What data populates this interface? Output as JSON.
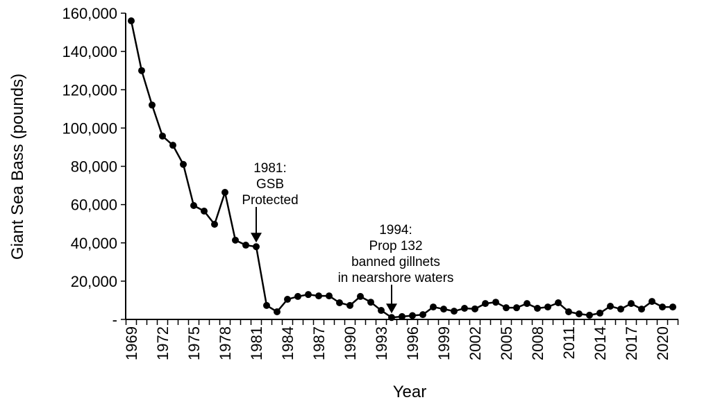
{
  "chart_data": {
    "type": "line",
    "title": "",
    "xlabel": "Year",
    "ylabel": "Giant Sea Bass (pounds)",
    "ylim": [
      0,
      160000
    ],
    "yticks": [
      0,
      20000,
      40000,
      60000,
      80000,
      100000,
      120000,
      140000,
      160000
    ],
    "ytick_labels": [
      "-",
      "20,000",
      "40,000",
      "60,000",
      "80,000",
      "100,000",
      "120,000",
      "140,000",
      "160,000"
    ],
    "xlim": [
      1969,
      2021
    ],
    "xtick_labels": [
      "1969",
      "1972",
      "1975",
      "1978",
      "1981",
      "1984",
      "1987",
      "1990",
      "1993",
      "1996",
      "1999",
      "2002",
      "2005",
      "2008",
      "2011",
      "2014",
      "2017",
      "2020"
    ],
    "grid": false,
    "marker": "circle",
    "color": "#000000",
    "x": [
      1969,
      1970,
      1971,
      1972,
      1973,
      1974,
      1975,
      1976,
      1977,
      1978,
      1979,
      1980,
      1981,
      1982,
      1983,
      1984,
      1985,
      1986,
      1987,
      1988,
      1989,
      1990,
      1991,
      1992,
      1993,
      1994,
      1995,
      1996,
      1997,
      1998,
      1999,
      2000,
      2001,
      2002,
      2003,
      2004,
      2005,
      2006,
      2007,
      2008,
      2009,
      2010,
      2011,
      2012,
      2013,
      2014,
      2015,
      2016,
      2017,
      2018,
      2019,
      2020,
      2021
    ],
    "values": [
      156000,
      130000,
      112000,
      95800,
      91000,
      81000,
      59500,
      56600,
      49700,
      66400,
      41400,
      38800,
      38000,
      7300,
      4000,
      10500,
      12000,
      13000,
      12300,
      12300,
      8700,
      7300,
      12000,
      9000,
      4700,
      1000,
      1500,
      2000,
      2500,
      6500,
      5400,
      4300,
      5800,
      5500,
      8300,
      9000,
      6100,
      6100,
      8300,
      5800,
      6500,
      8700,
      4000,
      2900,
      2200,
      3300,
      6900,
      5400,
      8300,
      5400,
      9400,
      6500,
      6500
    ],
    "annotations": [
      {
        "x": 1981,
        "lines": [
          "1981:",
          "GSB",
          "Protected"
        ]
      },
      {
        "x": 1994,
        "lines": [
          "1994:",
          "Prop 132",
          "banned gillnets",
          "in nearshore waters"
        ]
      }
    ]
  }
}
